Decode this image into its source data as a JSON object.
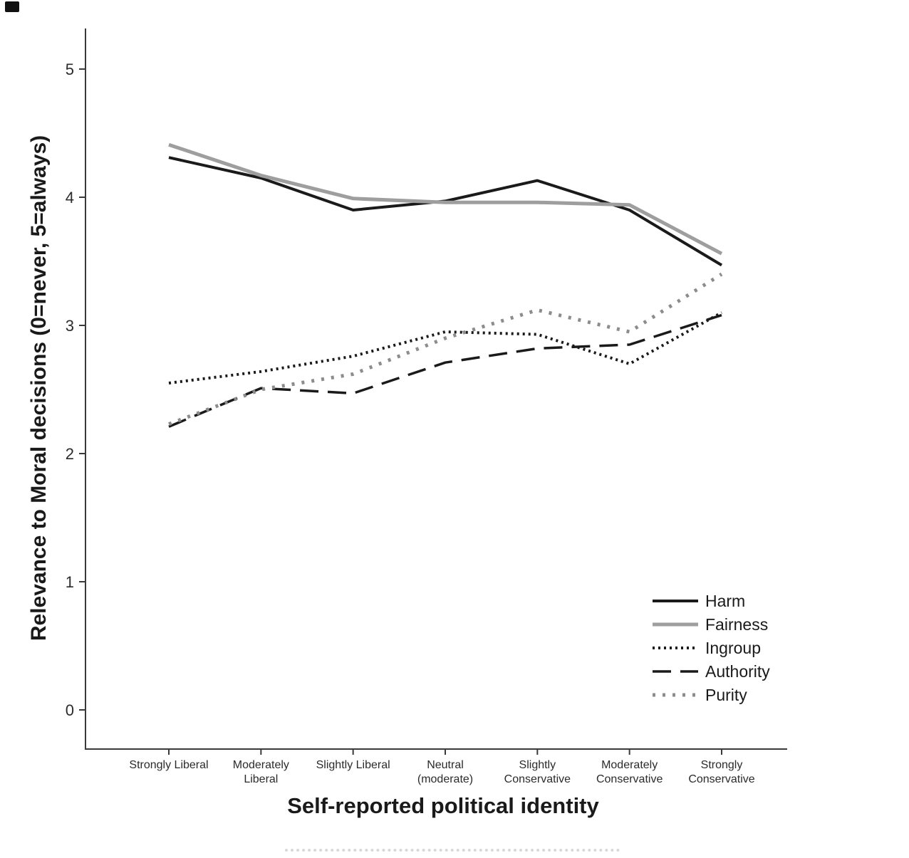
{
  "chart_data": {
    "type": "line",
    "title": "",
    "xlabel": "Self-reported political identity",
    "ylabel": "Relevance to Moral decisions (0=never, 5=always)",
    "ylim": [
      0,
      5
    ],
    "y_ticks": [
      0,
      1,
      2,
      3,
      4,
      5
    ],
    "grid": false,
    "legend_position": "inside-lower-right",
    "categories": [
      "Strongly Liberal",
      "Moderately Liberal",
      "Slightly Liberal",
      "Neutral (moderate)",
      "Slightly Conservative",
      "Moderately Conservative",
      "Strongly Conservative"
    ],
    "x_tick_lines": [
      [
        "Strongly Liberal"
      ],
      [
        "Moderately",
        "Liberal"
      ],
      [
        "Slightly Liberal"
      ],
      [
        "Neutral",
        "(moderate)"
      ],
      [
        "Slightly",
        "Conservative"
      ],
      [
        "Moderately",
        "Conservative"
      ],
      [
        "Strongly",
        "Conservative"
      ]
    ],
    "series": [
      {
        "name": "Harm",
        "color": "#1a1a1a",
        "dash": "solid",
        "width": 4,
        "values": [
          4.31,
          4.15,
          3.9,
          3.97,
          4.13,
          3.9,
          3.47
        ]
      },
      {
        "name": "Fairness",
        "color": "#9e9e9e",
        "dash": "solid",
        "width": 5,
        "values": [
          4.41,
          4.17,
          3.99,
          3.96,
          3.96,
          3.94,
          3.56
        ]
      },
      {
        "name": "Ingroup",
        "color": "#1a1a1a",
        "dash": "dotted",
        "width": 4,
        "values": [
          2.55,
          2.64,
          2.76,
          2.95,
          2.93,
          2.7,
          3.1
        ]
      },
      {
        "name": "Authority",
        "color": "#1a1a1a",
        "dash": "long-dash",
        "width": 3.5,
        "values": [
          2.21,
          2.51,
          2.47,
          2.71,
          2.82,
          2.85,
          3.08
        ]
      },
      {
        "name": "Purity",
        "color": "#8c8c8c",
        "dash": "coarse-dotted",
        "width": 5,
        "values": [
          2.23,
          2.5,
          2.62,
          2.9,
          3.12,
          2.95,
          3.4
        ]
      }
    ]
  }
}
